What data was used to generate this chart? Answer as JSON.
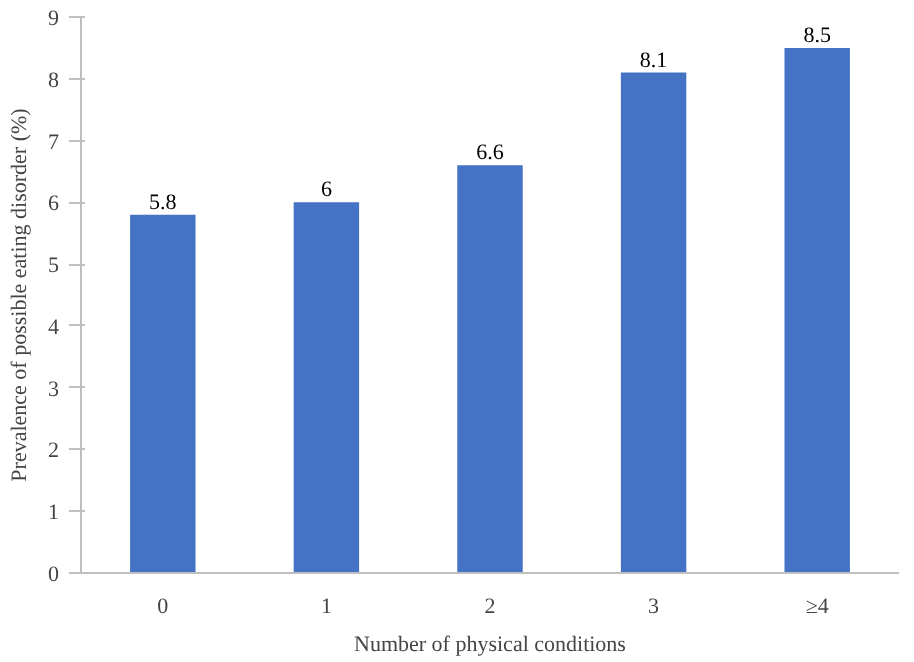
{
  "chart_data": {
    "type": "bar",
    "xlabel": "Number of physical conditions",
    "ylabel": "Prevalence of possible eating disorder (%)",
    "categories": [
      "0",
      "1",
      "2",
      "3",
      "≥4"
    ],
    "values": [
      5.8,
      6,
      6.6,
      8.1,
      8.5
    ],
    "color": "#4472c4",
    "ylim": [
      0,
      9
    ],
    "yticks": [
      0,
      1,
      2,
      3,
      4,
      5,
      6,
      7,
      8,
      9
    ],
    "grid": false,
    "data_labels": true
  }
}
